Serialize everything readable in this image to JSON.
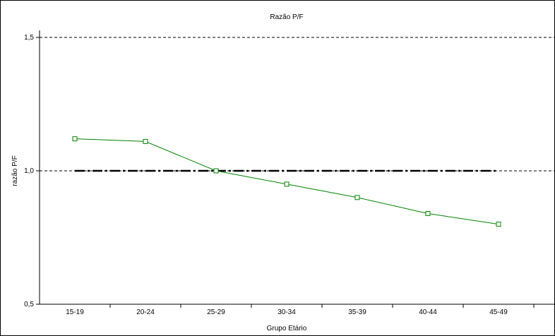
{
  "chart_data": {
    "type": "line",
    "title": "Razão P/F",
    "xlabel": "Grupo Etário",
    "ylabel": "razão P/F",
    "categories": [
      "15-19",
      "20-24",
      "25-29",
      "30-34",
      "35-39",
      "40-44",
      "45-49"
    ],
    "series": [
      {
        "values": [
          1.12,
          1.11,
          1.0,
          0.95,
          0.9,
          0.84,
          0.8
        ],
        "color": "#008000",
        "marker": "square"
      }
    ],
    "reference_line": {
      "y": 1.0,
      "style": "dash-dot",
      "color": "#000000"
    },
    "ylim": [
      0.5,
      1.5
    ],
    "yticks": [
      {
        "value": 0.5,
        "label": "0,5"
      },
      {
        "value": 1.0,
        "label": "1,0"
      },
      {
        "value": 1.5,
        "label": "1,5"
      }
    ],
    "grid": "horizontal dashed at major ticks"
  }
}
